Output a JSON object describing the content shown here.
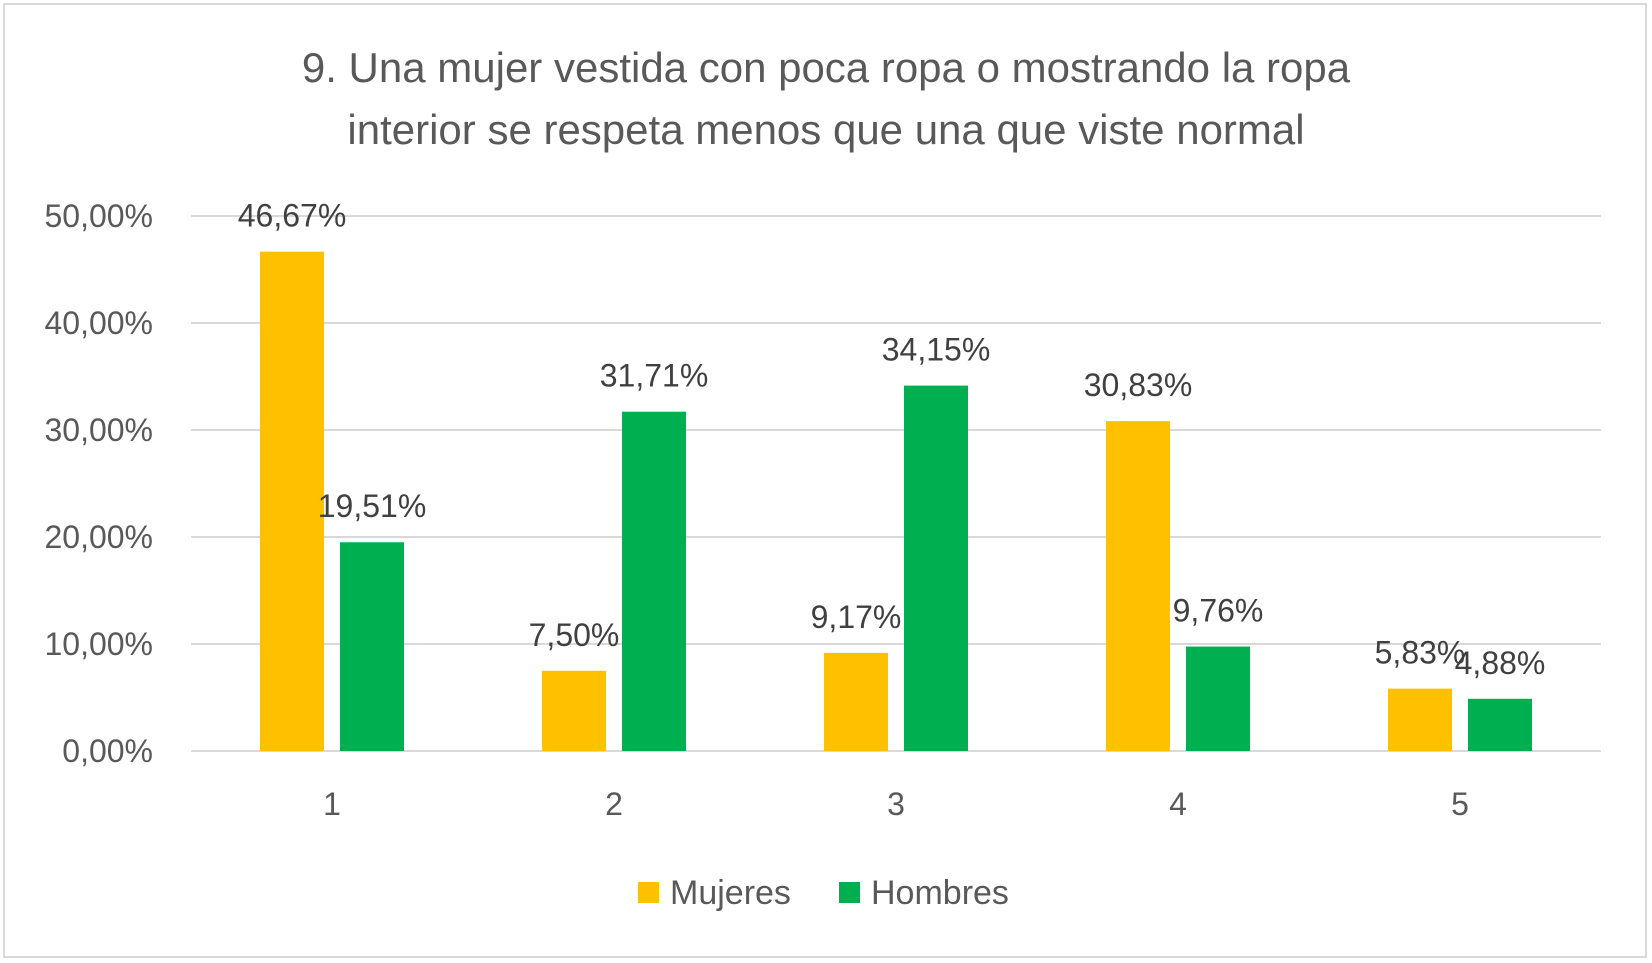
{
  "chart_data": {
    "type": "bar",
    "title": "9. Una mujer vestida con poca ropa o mostrando la ropa interior se respeta menos que una que viste normal",
    "title_lines": [
      "9. Una mujer vestida con poca ropa o mostrando la ropa",
      "interior se respeta menos que una que viste normal"
    ],
    "categories": [
      "1",
      "2",
      "3",
      "4",
      "5"
    ],
    "series": [
      {
        "name": "Mujeres",
        "color": "#ffc000",
        "values": [
          46.67,
          7.5,
          9.17,
          30.83,
          5.83
        ],
        "labels": [
          "46,67%",
          "7,50%",
          "9,17%",
          "30,83%",
          "5,83%"
        ]
      },
      {
        "name": "Hombres",
        "color": "#00b050",
        "values": [
          19.51,
          31.71,
          34.15,
          9.76,
          4.88
        ],
        "labels": [
          "19,51%",
          "31,71%",
          "34,15%",
          "9,76%",
          "4,88%"
        ]
      }
    ],
    "ylim": [
      0,
      50
    ],
    "yticks": [
      0,
      10,
      20,
      30,
      40,
      50
    ],
    "ytick_labels": [
      "0,00%",
      "10,00%",
      "20,00%",
      "30,00%",
      "40,00%",
      "50,00%"
    ],
    "xlabel": "",
    "ylabel": "",
    "grid": true,
    "legend_position": "bottom"
  }
}
